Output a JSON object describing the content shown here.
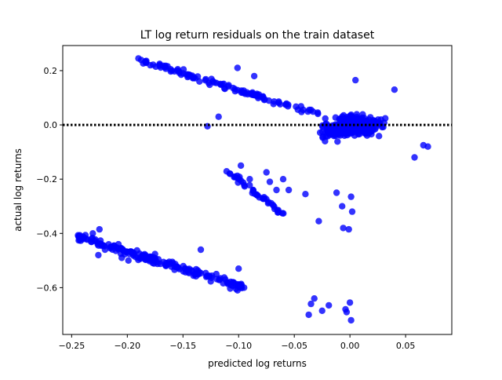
{
  "chart_data": {
    "type": "scatter",
    "title": "LT log return residuals on the train dataset",
    "xlabel": "predicted log returns",
    "ylabel": "actual log returns",
    "xlim": [
      -0.258,
      0.0915
    ],
    "ylim": [
      -0.7725,
      0.2925
    ],
    "xticks": [
      -0.25,
      -0.2,
      -0.15,
      -0.1,
      -0.05,
      0.0,
      0.05
    ],
    "xtick_labels": [
      "−0.25",
      "−0.20",
      "−0.15",
      "−0.10",
      "−0.05",
      "0.00",
      "0.05"
    ],
    "yticks": [
      0.2,
      0.0,
      -0.2,
      -0.4,
      -0.6
    ],
    "ytick_labels": [
      "0.2",
      "0.0",
      "−0.2",
      "−0.4",
      "−0.6"
    ],
    "grid": false,
    "point_color": "#0000ff",
    "point_alpha": 0.8,
    "reference_line": {
      "y": 0.0,
      "style": "dotted",
      "color": "#000000"
    },
    "clusters": [
      {
        "description": "upper band",
        "x_range": [
          -0.19,
          -0.03
        ],
        "y_start": 0.24,
        "y_end": 0.04,
        "spread": 0.02,
        "count": 110
      },
      {
        "description": "dense main cluster",
        "x_center": 0.0,
        "x_spread": 0.045,
        "y_center": 0.0,
        "y_spread": 0.06,
        "count": 380
      },
      {
        "description": "mid diagonal band",
        "x_range": [
          -0.11,
          -0.06
        ],
        "y_start": -0.17,
        "y_end": -0.33,
        "spread": 0.012,
        "count": 40
      },
      {
        "description": "lower-left band",
        "x_range": [
          -0.245,
          -0.095
        ],
        "y_start": -0.41,
        "y_end": -0.6,
        "spread": 0.03,
        "count": 180
      }
    ],
    "points": [
      [
        -0.243,
        -0.41
      ],
      [
        -0.231,
        -0.4
      ],
      [
        -0.225,
        -0.385
      ],
      [
        -0.226,
        -0.48
      ],
      [
        -0.22,
        -0.46
      ],
      [
        -0.215,
        -0.45
      ],
      [
        -0.208,
        -0.44
      ],
      [
        -0.205,
        -0.49
      ],
      [
        -0.199,
        -0.5
      ],
      [
        -0.195,
        -0.47
      ],
      [
        -0.19,
        0.245
      ],
      [
        -0.183,
        0.23
      ],
      [
        -0.171,
        0.225
      ],
      [
        -0.16,
        0.2
      ],
      [
        -0.15,
        0.19
      ],
      [
        -0.134,
        -0.46
      ],
      [
        -0.12,
        -0.55
      ],
      [
        -0.105,
        -0.58
      ],
      [
        -0.101,
        -0.61
      ],
      [
        -0.1,
        -0.53
      ],
      [
        -0.098,
        -0.15
      ],
      [
        -0.09,
        -0.2
      ],
      [
        -0.087,
        -0.24
      ],
      [
        -0.083,
        -0.26
      ],
      [
        -0.075,
        -0.175
      ],
      [
        -0.072,
        -0.21
      ],
      [
        -0.066,
        -0.24
      ],
      [
        -0.06,
        -0.2
      ],
      [
        -0.055,
        -0.24
      ],
      [
        -0.04,
        -0.255
      ],
      [
        -0.037,
        -0.7
      ],
      [
        -0.035,
        -0.66
      ],
      [
        -0.032,
        -0.64
      ],
      [
        -0.028,
        -0.355
      ],
      [
        -0.025,
        -0.685
      ],
      [
        -0.019,
        -0.665
      ],
      [
        -0.012,
        -0.25
      ],
      [
        -0.007,
        -0.3
      ],
      [
        -0.006,
        -0.38
      ],
      [
        -0.004,
        -0.68
      ],
      [
        -0.003,
        -0.69
      ],
      [
        -0.001,
        -0.385
      ],
      [
        0.001,
        -0.265
      ],
      [
        0.002,
        -0.32
      ],
      [
        0.0,
        -0.655
      ],
      [
        0.001,
        -0.72
      ],
      [
        -0.101,
        0.21
      ],
      [
        -0.086,
        0.18
      ],
      [
        -0.128,
        -0.005
      ],
      [
        -0.118,
        0.03
      ],
      [
        0.058,
        -0.12
      ],
      [
        0.066,
        -0.075
      ],
      [
        0.07,
        -0.08
      ],
      [
        0.005,
        0.165
      ],
      [
        0.04,
        0.13
      ]
    ]
  }
}
